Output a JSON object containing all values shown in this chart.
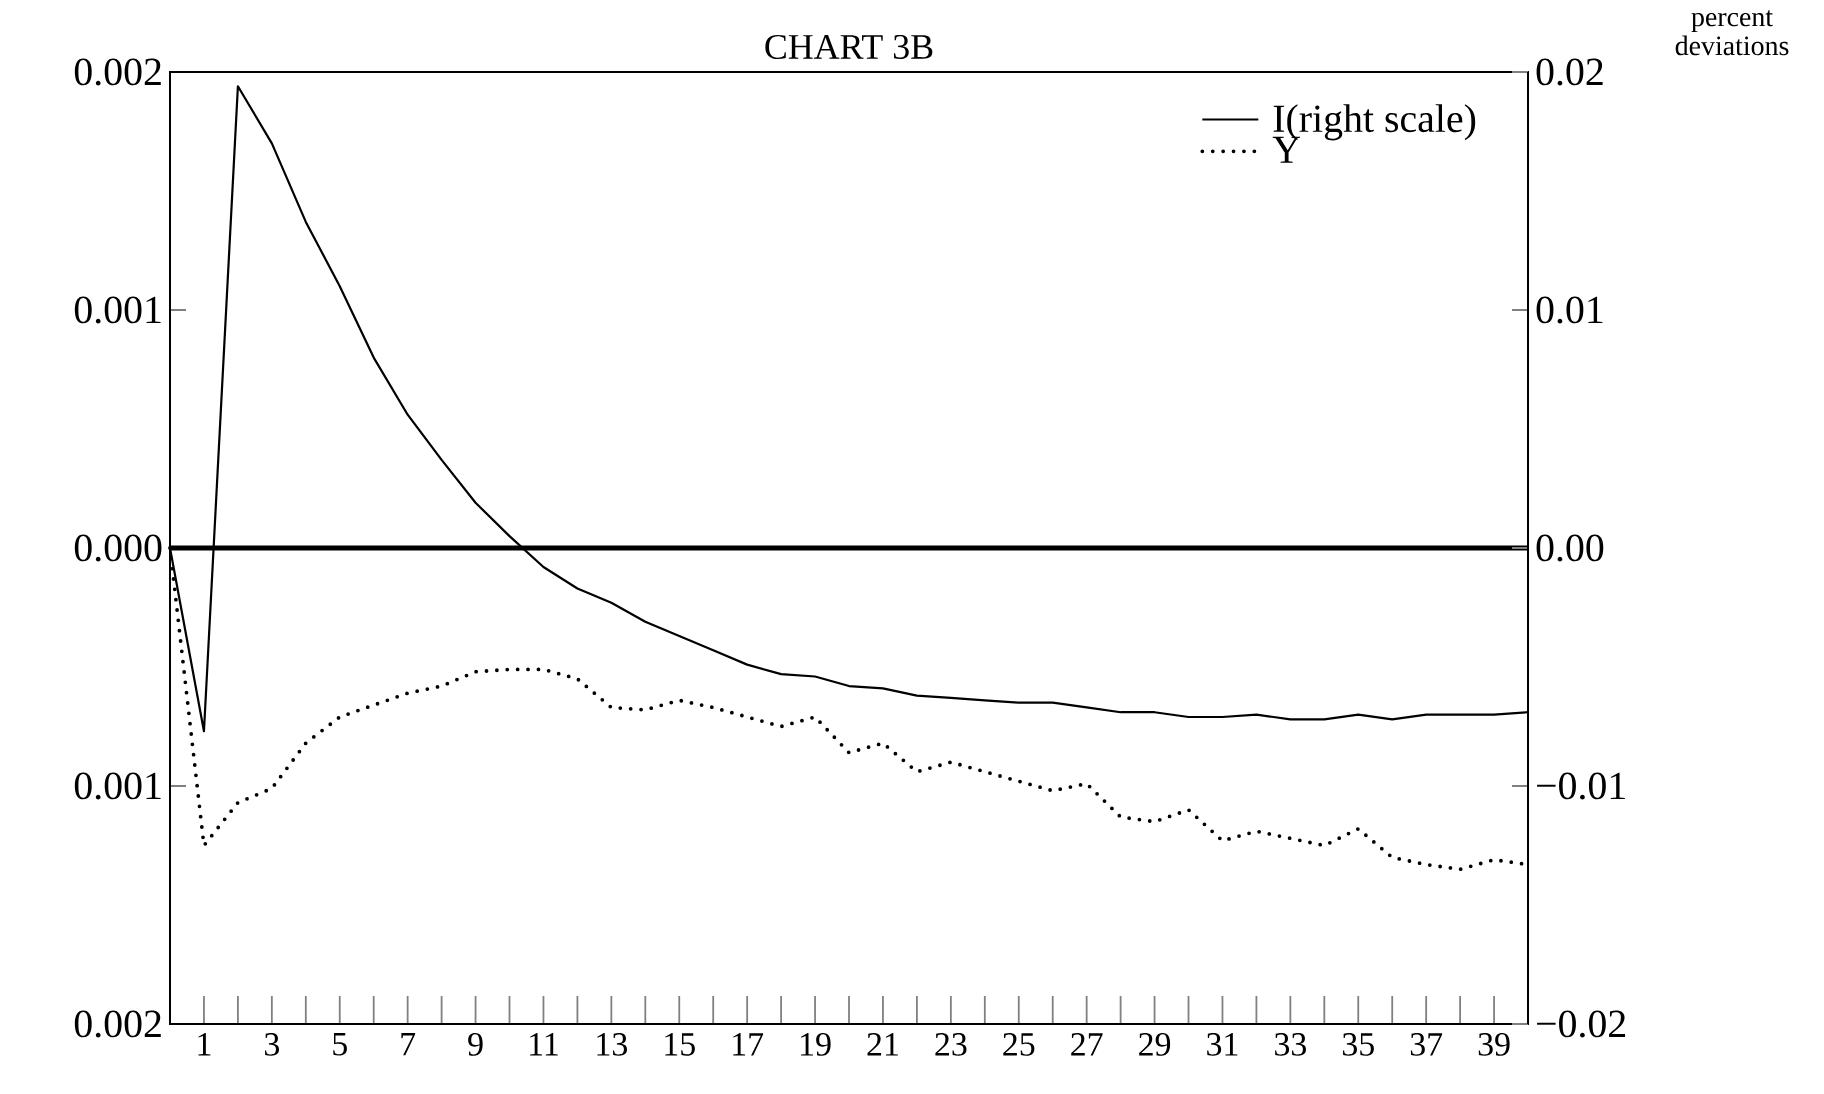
{
  "chart_data": {
    "type": "line",
    "title": "CHART 3B",
    "y2label": "percent deviations",
    "x": [
      0,
      1,
      2,
      3,
      4,
      5,
      6,
      7,
      8,
      9,
      10,
      11,
      12,
      13,
      14,
      15,
      16,
      17,
      18,
      19,
      20,
      21,
      22,
      23,
      24,
      25,
      26,
      27,
      28,
      29,
      30,
      31,
      32,
      33,
      34,
      35,
      36,
      37,
      38,
      39,
      40
    ],
    "xlim": [
      0,
      40
    ],
    "xticks": [
      1,
      {
        "value": 2,
        "label": null
      },
      3,
      {
        "value": 4,
        "label": null
      },
      5,
      {
        "value": 6,
        "label": null
      },
      7,
      {
        "value": 8,
        "label": null
      },
      9,
      {
        "value": 10,
        "label": null
      },
      11,
      {
        "value": 12,
        "label": null
      },
      13,
      {
        "value": 14,
        "label": null
      },
      15,
      {
        "value": 16,
        "label": null
      },
      17,
      {
        "value": 18,
        "label": null
      },
      19,
      {
        "value": 20,
        "label": null
      },
      21,
      {
        "value": 22,
        "label": null
      },
      23,
      {
        "value": 24,
        "label": null
      },
      25,
      {
        "value": 26,
        "label": null
      },
      27,
      {
        "value": 28,
        "label": null
      },
      29,
      {
        "value": 30,
        "label": null
      },
      31,
      {
        "value": 32,
        "label": null
      },
      33,
      {
        "value": 34,
        "label": null
      },
      35,
      {
        "value": 36,
        "label": null
      },
      37,
      {
        "value": 38,
        "label": null
      },
      39
    ],
    "ylim": [
      -0.002,
      0.002
    ],
    "yticks": [
      {
        "value": -0.002,
        "label": "0.002"
      },
      {
        "value": -0.001,
        "label": "0.001"
      },
      {
        "value": 0,
        "label": "0.000"
      },
      0.001,
      0.002
    ],
    "y2lim": [
      -0.02,
      0.02
    ],
    "y2ticks": [
      {
        "value": -0.02,
        "label": "−0.02"
      },
      {
        "value": -0.01,
        "label": "−0.01"
      },
      {
        "value": 0,
        "label": "0.00"
      },
      0.01,
      0.02
    ],
    "series": [
      {
        "name": "I(right scale)",
        "color": "#000000",
        "axis": "y2",
        "line_style": "solid",
        "values": [
          0,
          -0.0077,
          0.0194,
          0.017,
          0.0137,
          0.011,
          0.008,
          0.0056,
          0.0037,
          0.0019,
          0.0005,
          -0.0008,
          -0.0017,
          -0.0023,
          -0.0031,
          -0.0037,
          -0.0043,
          -0.0049,
          -0.0053,
          -0.0054,
          -0.0058,
          -0.0059,
          -0.0062,
          -0.0063,
          -0.0064,
          -0.0065,
          -0.0065,
          -0.0067,
          -0.0069,
          -0.0069,
          -0.0071,
          -0.0071,
          -0.007,
          -0.0072,
          -0.0072,
          -0.007,
          -0.0072,
          -0.007,
          -0.007,
          -0.007,
          -0.0069
        ]
      },
      {
        "name": "Y",
        "color": "#000000",
        "line_style": "dotted",
        "values": [
          0,
          -0.00125,
          -0.00107,
          -0.00101,
          -0.00082,
          -0.00071,
          -0.00066,
          -0.00061,
          -0.00058,
          -0.00052,
          -0.00051,
          -0.00051,
          -0.00055,
          -0.00067,
          -0.00068,
          -0.00064,
          -0.00067,
          -0.00071,
          -0.00075,
          -0.00071,
          -0.00086,
          -0.00082,
          -0.00094,
          -0.0009,
          -0.00094,
          -0.00098,
          -0.00102,
          -0.00099,
          -0.00113,
          -0.00115,
          -0.0011,
          -0.00123,
          -0.00119,
          -0.00122,
          -0.00125,
          -0.00118,
          -0.0013,
          -0.00133,
          -0.00135,
          -0.00131,
          -0.00133
        ]
      }
    ],
    "ref_lines": [
      {
        "axis": "y",
        "value": 0
      }
    ],
    "legend": "top right"
  }
}
